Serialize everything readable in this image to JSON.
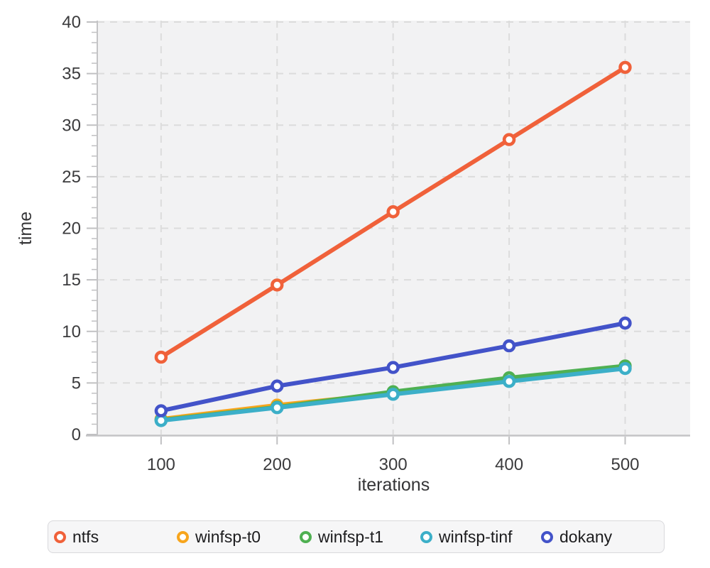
{
  "chart_data": {
    "type": "line",
    "x": [
      100,
      200,
      300,
      400,
      500
    ],
    "series": [
      {
        "name": "ntfs",
        "color": "#f0613a",
        "values": [
          7.5,
          14.5,
          21.6,
          28.6,
          35.6
        ]
      },
      {
        "name": "winfsp-t0",
        "color": "#f7a51d",
        "values": [
          1.5,
          2.85,
          4.0,
          5.3,
          6.5
        ]
      },
      {
        "name": "winfsp-t1",
        "color": "#4fb052",
        "values": [
          1.4,
          2.65,
          4.15,
          5.5,
          6.65
        ]
      },
      {
        "name": "winfsp-tinf",
        "color": "#3cafc8",
        "values": [
          1.35,
          2.6,
          3.9,
          5.15,
          6.4
        ]
      },
      {
        "name": "dokany",
        "color": "#4353c9",
        "values": [
          2.3,
          4.7,
          6.5,
          8.6,
          10.8
        ]
      }
    ],
    "title": "",
    "xlabel": "iterations",
    "ylabel": "time",
    "xlim": [
      45,
      556
    ],
    "ylim": [
      0,
      40
    ],
    "x_ticks": [
      100,
      200,
      300,
      400,
      500
    ],
    "y_major_ticks": [
      0,
      5,
      10,
      15,
      20,
      25,
      30,
      35,
      40
    ],
    "y_minor_step": 1,
    "grid": true,
    "grid_style": "dashed",
    "marker": "open-circle",
    "legend_position": "bottom"
  },
  "colors": {
    "page_bg": "#ffffff",
    "plot_bg": "#f2f2f3",
    "grid": "#dcdcdc",
    "axis": "#c4c4c6",
    "tick": "#c0c0c2",
    "tick_label": "#3b3b3d",
    "axis_label": "#343436",
    "legend_bg": "#f6f6f7",
    "legend_border": "#d9d9dc",
    "legend_text": "#1c1c1e",
    "marker_fill": "#ffffff"
  }
}
